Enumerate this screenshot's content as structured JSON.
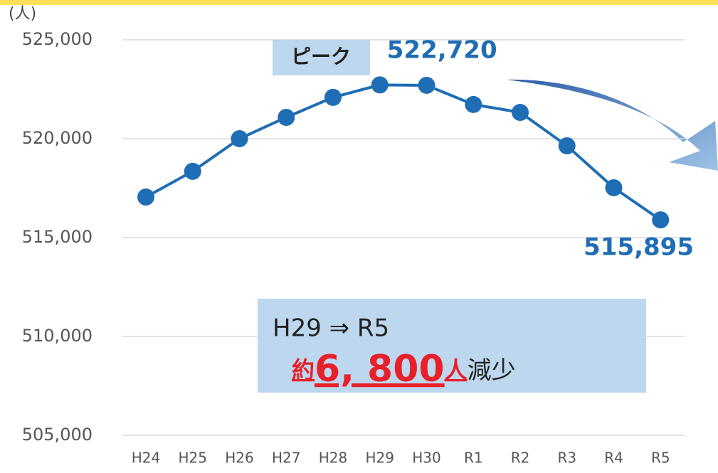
{
  "chart_data": {
    "type": "line",
    "unit_label": "(人)",
    "categories": [
      "H24",
      "H25",
      "H26",
      "H27",
      "H28",
      "H29",
      "H30",
      "R1",
      "R2",
      "R3",
      "R4",
      "R5"
    ],
    "series": [
      {
        "name": null,
        "color": "#1f6db5",
        "values": [
          517050,
          518350,
          520000,
          521080,
          522090,
          522720,
          522700,
          521730,
          521330,
          519640,
          517520,
          515895
        ],
        "value_labels": [
          null,
          null,
          null,
          null,
          null,
          "522,720",
          null,
          null,
          null,
          null,
          null,
          "515,895"
        ]
      }
    ],
    "ylim": [
      505000,
      525000
    ],
    "yticks": [
      {
        "value": 505000,
        "label": "505,000"
      },
      {
        "value": 510000,
        "label": "510,000"
      },
      {
        "value": 515000,
        "label": "515,000"
      },
      {
        "value": 520000,
        "label": "520,000"
      },
      {
        "value": 525000,
        "label": "525,000"
      }
    ],
    "grid": true,
    "annotations": {
      "peak": "ピーク",
      "callout_line1": "H29 ⇒ R5",
      "callout_parts": [
        "約",
        "6, 800",
        "人",
        "減少"
      ]
    }
  }
}
